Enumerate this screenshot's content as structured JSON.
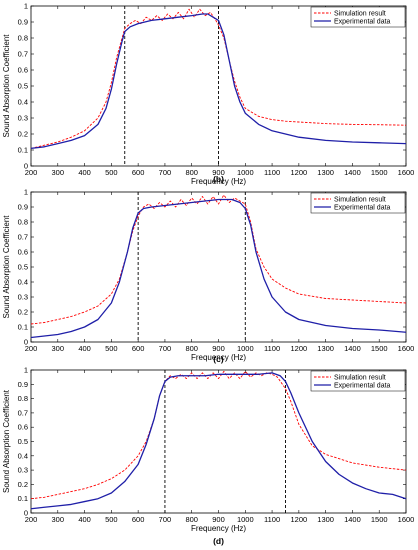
{
  "chart_data": [
    {
      "type": "line",
      "panel_label": "(b)",
      "xlabel": "Frequency (Hz)",
      "ylabel": "Sound Absorption Coefficient",
      "xlim": [
        200,
        1600
      ],
      "ylim": [
        0,
        1
      ],
      "xticks": [
        200,
        300,
        400,
        500,
        600,
        700,
        800,
        900,
        1000,
        1100,
        1200,
        1300,
        1400,
        1500,
        1600
      ],
      "yticks": [
        0,
        0.1,
        0.2,
        0.3,
        0.4,
        0.5,
        0.6,
        0.7,
        0.8,
        0.9,
        1
      ],
      "vlines": [
        550,
        900
      ],
      "legend_position": "top-right",
      "series": [
        {
          "name": "Simulation result",
          "color": "#ff0000",
          "style": "dashed",
          "x": [
            200,
            250,
            300,
            350,
            400,
            450,
            480,
            500,
            520,
            540,
            550,
            570,
            590,
            610,
            630,
            650,
            670,
            690,
            710,
            730,
            750,
            770,
            790,
            810,
            830,
            850,
            870,
            890,
            900,
            920,
            940,
            960,
            980,
            1000,
            1050,
            1100,
            1150,
            1200,
            1300,
            1400,
            1500,
            1600
          ],
          "y": [
            0.11,
            0.13,
            0.15,
            0.18,
            0.22,
            0.3,
            0.4,
            0.52,
            0.68,
            0.8,
            0.86,
            0.89,
            0.91,
            0.89,
            0.93,
            0.91,
            0.94,
            0.91,
            0.95,
            0.92,
            0.96,
            0.92,
            0.98,
            0.93,
            0.98,
            0.94,
            0.96,
            0.91,
            0.88,
            0.8,
            0.66,
            0.53,
            0.43,
            0.36,
            0.31,
            0.29,
            0.28,
            0.275,
            0.265,
            0.26,
            0.258,
            0.255
          ]
        },
        {
          "name": "Experimental data",
          "color": "#1f1fa8",
          "style": "solid",
          "x": [
            200,
            250,
            300,
            350,
            400,
            450,
            480,
            500,
            520,
            540,
            550,
            570,
            600,
            650,
            700,
            750,
            800,
            840,
            860,
            880,
            900,
            920,
            940,
            960,
            980,
            1000,
            1050,
            1100,
            1150,
            1200,
            1300,
            1400,
            1500,
            1600
          ],
          "y": [
            0.11,
            0.12,
            0.14,
            0.16,
            0.19,
            0.26,
            0.36,
            0.48,
            0.64,
            0.78,
            0.84,
            0.87,
            0.89,
            0.91,
            0.92,
            0.93,
            0.94,
            0.95,
            0.95,
            0.93,
            0.91,
            0.82,
            0.66,
            0.5,
            0.4,
            0.33,
            0.26,
            0.22,
            0.2,
            0.18,
            0.16,
            0.15,
            0.145,
            0.14
          ]
        }
      ]
    },
    {
      "type": "line",
      "panel_label": "(c)",
      "xlabel": "Frequency (Hz)",
      "ylabel": "Sound Absorption Coefficient",
      "xlim": [
        200,
        1600
      ],
      "ylim": [
        0,
        1
      ],
      "xticks": [
        200,
        300,
        400,
        500,
        600,
        700,
        800,
        900,
        1000,
        1100,
        1200,
        1300,
        1400,
        1500,
        1600
      ],
      "yticks": [
        0,
        0.1,
        0.2,
        0.3,
        0.4,
        0.5,
        0.6,
        0.7,
        0.8,
        0.9,
        1
      ],
      "vlines": [
        600,
        1000
      ],
      "legend_position": "top-right",
      "series": [
        {
          "name": "Simulation result",
          "color": "#ff0000",
          "style": "dashed",
          "x": [
            200,
            250,
            300,
            350,
            400,
            450,
            500,
            530,
            560,
            580,
            600,
            620,
            640,
            660,
            680,
            700,
            720,
            740,
            760,
            780,
            800,
            820,
            840,
            860,
            880,
            900,
            920,
            940,
            960,
            980,
            1000,
            1020,
            1040,
            1070,
            1100,
            1150,
            1200,
            1300,
            1400,
            1500,
            1600
          ],
          "y": [
            0.12,
            0.13,
            0.15,
            0.17,
            0.2,
            0.24,
            0.32,
            0.42,
            0.6,
            0.74,
            0.84,
            0.9,
            0.92,
            0.89,
            0.93,
            0.9,
            0.94,
            0.9,
            0.95,
            0.91,
            0.96,
            0.92,
            0.97,
            0.92,
            0.97,
            0.92,
            0.98,
            0.93,
            0.96,
            0.94,
            0.92,
            0.8,
            0.62,
            0.5,
            0.42,
            0.36,
            0.32,
            0.29,
            0.28,
            0.27,
            0.26
          ]
        },
        {
          "name": "Experimental data",
          "color": "#1f1fa8",
          "style": "solid",
          "x": [
            200,
            250,
            300,
            350,
            400,
            450,
            500,
            530,
            560,
            580,
            600,
            620,
            650,
            700,
            750,
            800,
            850,
            900,
            950,
            980,
            1000,
            1020,
            1040,
            1070,
            1100,
            1150,
            1200,
            1250,
            1300,
            1400,
            1500,
            1600
          ],
          "y": [
            0.03,
            0.04,
            0.05,
            0.07,
            0.1,
            0.15,
            0.26,
            0.4,
            0.6,
            0.76,
            0.86,
            0.89,
            0.9,
            0.91,
            0.92,
            0.93,
            0.94,
            0.95,
            0.95,
            0.93,
            0.89,
            0.78,
            0.6,
            0.42,
            0.3,
            0.2,
            0.15,
            0.13,
            0.11,
            0.09,
            0.08,
            0.065
          ]
        }
      ]
    },
    {
      "type": "line",
      "panel_label": "(d)",
      "xlabel": "Frequency (Hz)",
      "ylabel": "Sound Absorption Coefficient",
      "xlim": [
        200,
        1600
      ],
      "ylim": [
        0,
        1
      ],
      "xticks": [
        200,
        300,
        400,
        500,
        600,
        700,
        800,
        900,
        1000,
        1100,
        1200,
        1300,
        1400,
        1500,
        1600
      ],
      "yticks": [
        0,
        0.1,
        0.2,
        0.3,
        0.4,
        0.5,
        0.6,
        0.7,
        0.8,
        0.9,
        1
      ],
      "vlines": [
        700,
        1150
      ],
      "legend_position": "top-right",
      "series": [
        {
          "name": "Simulation result",
          "color": "#ff0000",
          "style": "dashed",
          "x": [
            200,
            250,
            300,
            350,
            400,
            450,
            500,
            550,
            600,
            630,
            660,
            680,
            700,
            720,
            740,
            760,
            780,
            800,
            820,
            840,
            860,
            880,
            900,
            920,
            940,
            960,
            980,
            1000,
            1020,
            1040,
            1060,
            1080,
            1100,
            1120,
            1150,
            1170,
            1200,
            1250,
            1300,
            1400,
            1500,
            1600
          ],
          "y": [
            0.1,
            0.11,
            0.13,
            0.15,
            0.17,
            0.2,
            0.24,
            0.3,
            0.4,
            0.5,
            0.66,
            0.82,
            0.92,
            0.96,
            0.94,
            0.97,
            0.94,
            0.98,
            0.94,
            0.98,
            0.94,
            0.98,
            0.94,
            0.99,
            0.94,
            0.98,
            0.94,
            0.99,
            0.95,
            0.98,
            0.96,
            0.98,
            0.97,
            0.95,
            0.87,
            0.78,
            0.62,
            0.47,
            0.41,
            0.35,
            0.32,
            0.3
          ]
        },
        {
          "name": "Experimental data",
          "color": "#1f1fa8",
          "style": "solid",
          "x": [
            200,
            250,
            300,
            350,
            400,
            450,
            500,
            550,
            600,
            630,
            660,
            680,
            700,
            720,
            750,
            800,
            850,
            900,
            950,
            1000,
            1050,
            1100,
            1130,
            1150,
            1170,
            1200,
            1250,
            1300,
            1350,
            1400,
            1450,
            1500,
            1550,
            1600
          ],
          "y": [
            0.03,
            0.04,
            0.05,
            0.06,
            0.08,
            0.1,
            0.14,
            0.22,
            0.34,
            0.48,
            0.66,
            0.82,
            0.92,
            0.95,
            0.96,
            0.96,
            0.96,
            0.97,
            0.97,
            0.97,
            0.97,
            0.98,
            0.96,
            0.92,
            0.84,
            0.7,
            0.5,
            0.36,
            0.27,
            0.21,
            0.17,
            0.14,
            0.13,
            0.1
          ]
        }
      ]
    }
  ]
}
